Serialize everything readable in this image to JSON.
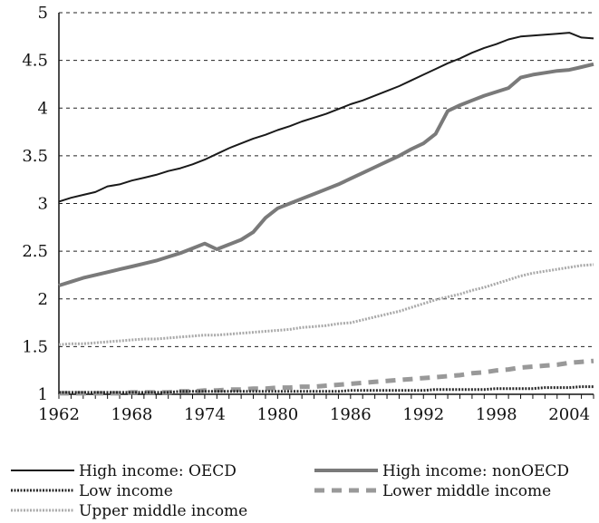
{
  "chart_data": {
    "type": "line",
    "title": "",
    "xlabel": "",
    "ylabel": "",
    "x": [
      1962,
      1963,
      1964,
      1965,
      1966,
      1967,
      1968,
      1969,
      1970,
      1971,
      1972,
      1973,
      1974,
      1975,
      1976,
      1977,
      1978,
      1979,
      1980,
      1981,
      1982,
      1983,
      1984,
      1985,
      1986,
      1987,
      1988,
      1989,
      1990,
      1991,
      1992,
      1993,
      1994,
      1995,
      1996,
      1997,
      1998,
      1999,
      2000,
      2001,
      2002,
      2003,
      2004,
      2005,
      2006
    ],
    "xlim": [
      1962,
      2006
    ],
    "ylim": [
      1,
      5
    ],
    "x_ticks": [
      "1962",
      "1968",
      "1974",
      "1980",
      "1986",
      "1992",
      "1998",
      "2004"
    ],
    "y_ticks": [
      "1",
      "1.5",
      "2",
      "2.5",
      "3",
      "3.5",
      "4",
      "4.5",
      "5"
    ],
    "grid": "horizontal dashed",
    "legend_position": "bottom",
    "series": [
      {
        "name": "High income: OECD",
        "style": "solid-thin",
        "color": "#1a1a1a",
        "values": [
          3.02,
          3.06,
          3.09,
          3.12,
          3.18,
          3.2,
          3.24,
          3.27,
          3.3,
          3.34,
          3.37,
          3.41,
          3.46,
          3.52,
          3.58,
          3.63,
          3.68,
          3.72,
          3.77,
          3.81,
          3.86,
          3.9,
          3.94,
          3.99,
          4.04,
          4.08,
          4.13,
          4.18,
          4.23,
          4.29,
          4.35,
          4.41,
          4.47,
          4.52,
          4.58,
          4.63,
          4.67,
          4.72,
          4.75,
          4.76,
          4.77,
          4.78,
          4.79,
          4.74,
          4.73
        ]
      },
      {
        "name": "High income: nonOECD",
        "style": "solid-thick",
        "color": "#7a7a7a",
        "values": [
          2.14,
          2.18,
          2.22,
          2.25,
          2.28,
          2.31,
          2.34,
          2.37,
          2.4,
          2.44,
          2.48,
          2.53,
          2.58,
          2.52,
          2.57,
          2.62,
          2.7,
          2.85,
          2.95,
          3.0,
          3.05,
          3.1,
          3.15,
          3.2,
          3.26,
          3.32,
          3.38,
          3.44,
          3.5,
          3.57,
          3.63,
          3.73,
          3.97,
          4.03,
          4.08,
          4.13,
          4.17,
          4.21,
          4.32,
          4.35,
          4.37,
          4.39,
          4.4,
          4.43,
          4.46
        ]
      },
      {
        "name": "Low income",
        "style": "dotted-dark",
        "color": "#2a2a2a",
        "values": [
          1.02,
          1.02,
          1.02,
          1.02,
          1.02,
          1.02,
          1.02,
          1.02,
          1.02,
          1.02,
          1.03,
          1.03,
          1.03,
          1.03,
          1.03,
          1.03,
          1.03,
          1.03,
          1.03,
          1.03,
          1.03,
          1.03,
          1.03,
          1.03,
          1.04,
          1.04,
          1.04,
          1.04,
          1.04,
          1.04,
          1.04,
          1.05,
          1.05,
          1.05,
          1.05,
          1.05,
          1.06,
          1.06,
          1.06,
          1.06,
          1.07,
          1.07,
          1.07,
          1.08,
          1.08
        ]
      },
      {
        "name": "Lower middle income",
        "style": "dashed",
        "color": "#999999",
        "values": [
          1.01,
          1.01,
          1.01,
          1.01,
          1.01,
          1.01,
          1.02,
          1.02,
          1.02,
          1.02,
          1.03,
          1.03,
          1.04,
          1.04,
          1.05,
          1.05,
          1.06,
          1.06,
          1.07,
          1.07,
          1.08,
          1.08,
          1.09,
          1.1,
          1.11,
          1.12,
          1.13,
          1.14,
          1.15,
          1.16,
          1.17,
          1.18,
          1.19,
          1.2,
          1.22,
          1.23,
          1.25,
          1.26,
          1.28,
          1.29,
          1.3,
          1.31,
          1.33,
          1.34,
          1.35
        ]
      },
      {
        "name": "Upper middle income",
        "style": "dotted-light",
        "color": "#aaaaaa",
        "values": [
          1.52,
          1.53,
          1.53,
          1.54,
          1.55,
          1.56,
          1.57,
          1.58,
          1.58,
          1.59,
          1.6,
          1.61,
          1.62,
          1.62,
          1.63,
          1.64,
          1.65,
          1.66,
          1.67,
          1.68,
          1.7,
          1.71,
          1.72,
          1.74,
          1.75,
          1.78,
          1.81,
          1.84,
          1.87,
          1.91,
          1.95,
          1.99,
          2.02,
          2.05,
          2.09,
          2.12,
          2.16,
          2.2,
          2.24,
          2.27,
          2.29,
          2.31,
          2.33,
          2.35,
          2.36
        ]
      }
    ]
  }
}
